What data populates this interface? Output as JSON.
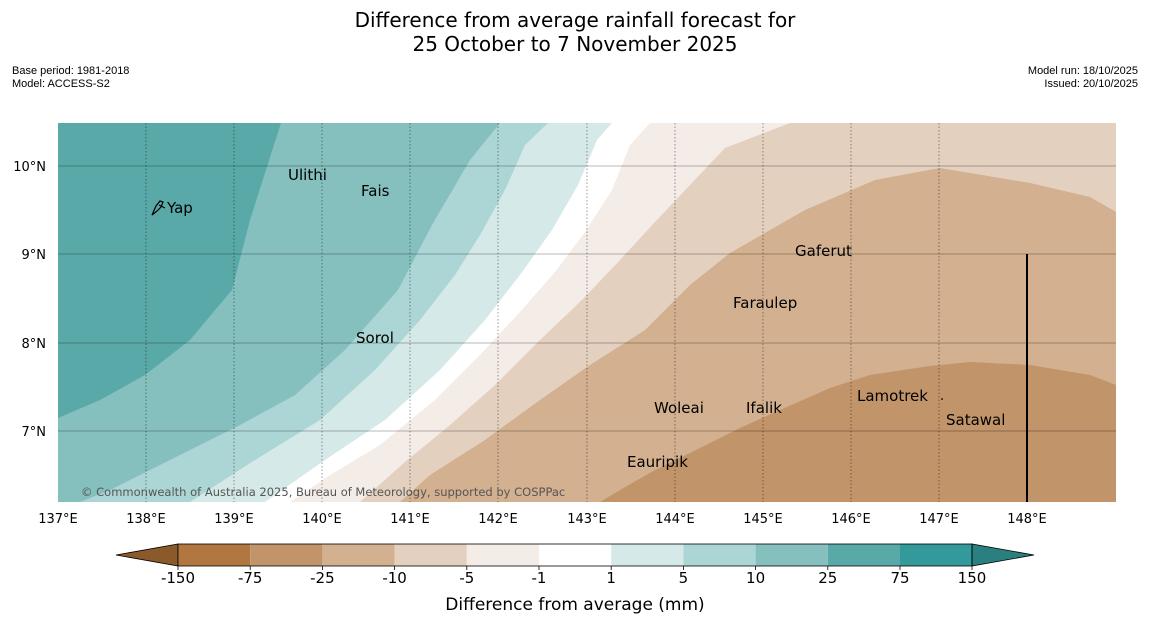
{
  "title": {
    "line1": "Difference from average rainfall forecast for",
    "line2": "25 October to 7 November 2025"
  },
  "meta_left": {
    "base_period": "Base period: 1981-2018",
    "model": "Model: ACCESS-S2"
  },
  "meta_right": {
    "model_run": "Model run: 18/10/2025",
    "issued": "Issued: 20/10/2025"
  },
  "map": {
    "lon_labels": [
      "137°E",
      "138°E",
      "139°E",
      "140°E",
      "141°E",
      "142°E",
      "143°E",
      "144°E",
      "145°E",
      "146°E",
      "147°E",
      "148°E"
    ],
    "lat_labels": [
      "10°N",
      "9°N",
      "8°N",
      "7°N"
    ],
    "places": [
      "Yap",
      "Ulithi",
      "Fais",
      "Gaferut",
      "Faraulep",
      "Sorol",
      "Woleai",
      "Ifalik",
      "Lamotrek",
      "Satawal",
      "Eauripik"
    ],
    "copyright": "© Commonwealth of Australia 2025, Bureau of Meteorology, supported by COSPPac"
  },
  "legend": {
    "tick_labels": [
      "-150",
      "-75",
      "-25",
      "-10",
      "-5",
      "-1",
      "1",
      "5",
      "10",
      "25",
      "75",
      "150"
    ],
    "title": "Difference from average (mm)",
    "colors": [
      "#8b5a2b",
      "#b07840",
      "#c19469",
      "#d3b08f",
      "#e3d0bf",
      "#f4ece7",
      "#ffffff",
      "#d6e9e9",
      "#acd5d5",
      "#85c0bf",
      "#5aa9a9",
      "#33999a",
      "#2a7f7f"
    ]
  }
}
